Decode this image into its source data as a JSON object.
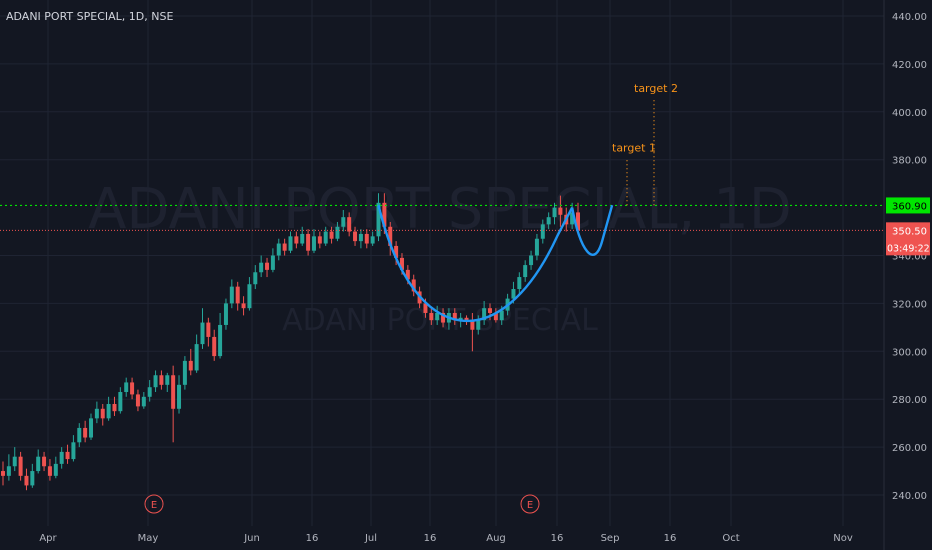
{
  "header": {
    "title": "ADANI PORT SPECIAL, 1D, NSE"
  },
  "watermark": {
    "line1": "ADANI PORT SPECIAL, 1D",
    "line2": "ADANI PORT SPECIAL"
  },
  "colors": {
    "background": "#131722",
    "grid": "#1f2433",
    "up": "#26a69a",
    "down": "#ef5350",
    "text": "#b2b5be",
    "resistance": "#00e600",
    "price_line": "#ef5350",
    "cup": "#2196f3",
    "annotation": "#f7931a"
  },
  "annotations": {
    "target1": "target 1",
    "target2": "target 2",
    "earnings_marker": "E"
  },
  "chart_data": {
    "type": "candlestick",
    "title": "ADANI PORT SPECIAL, 1D, NSE",
    "ylim": [
      228,
      448
    ],
    "y_ticks": [
      "240.00",
      "260.00",
      "280.00",
      "300.00",
      "320.00",
      "340.00",
      "380.00",
      "400.00",
      "420.00",
      "440.00"
    ],
    "x_ticks": [
      "Apr",
      "May",
      "Jun",
      "16",
      "Jul",
      "16",
      "Aug",
      "16",
      "Sep",
      "16",
      "Oct",
      "Nov"
    ],
    "grid": true,
    "price_labels": [
      {
        "label": "360.90",
        "value": 360.9,
        "role": "resistance"
      },
      {
        "label": "350.50",
        "value": 350.5,
        "role": "last-price"
      }
    ],
    "countdown": "03:49:22",
    "candles": [
      [
        250,
        248,
        254,
        244
      ],
      [
        248,
        252,
        257,
        246
      ],
      [
        252,
        256,
        260,
        250
      ],
      [
        256,
        248,
        258,
        246
      ],
      [
        248,
        244,
        251,
        242
      ],
      [
        244,
        250,
        253,
        243
      ],
      [
        250,
        256,
        259,
        249
      ],
      [
        256,
        252,
        258,
        250
      ],
      [
        252,
        248,
        255,
        246
      ],
      [
        248,
        253,
        256,
        247
      ],
      [
        253,
        258,
        260,
        251
      ],
      [
        258,
        255,
        261,
        253
      ],
      [
        255,
        262,
        265,
        254
      ],
      [
        262,
        268,
        270,
        260
      ],
      [
        268,
        264,
        271,
        262
      ],
      [
        264,
        272,
        274,
        263
      ],
      [
        272,
        276,
        279,
        270
      ],
      [
        276,
        272,
        278,
        269
      ],
      [
        272,
        278,
        281,
        271
      ],
      [
        278,
        275,
        281,
        273
      ],
      [
        275,
        283,
        285,
        274
      ],
      [
        283,
        287,
        289,
        281
      ],
      [
        287,
        282,
        289,
        280
      ],
      [
        282,
        277,
        284,
        275
      ],
      [
        277,
        281,
        283,
        276
      ],
      [
        281,
        285,
        288,
        279
      ],
      [
        285,
        290,
        292,
        283
      ],
      [
        290,
        286,
        292,
        284
      ],
      [
        286,
        290,
        291,
        283
      ],
      [
        290,
        276,
        294,
        262
      ],
      [
        276,
        286,
        290,
        274
      ],
      [
        286,
        296,
        298,
        284
      ],
      [
        296,
        292,
        301,
        290
      ],
      [
        292,
        303,
        307,
        291
      ],
      [
        303,
        312,
        318,
        301
      ],
      [
        312,
        306,
        314,
        302
      ],
      [
        306,
        298,
        309,
        296
      ],
      [
        298,
        311,
        316,
        297
      ],
      [
        311,
        320,
        322,
        309
      ],
      [
        320,
        327,
        330,
        318
      ],
      [
        327,
        320,
        329,
        317
      ],
      [
        320,
        318,
        323,
        315
      ],
      [
        318,
        328,
        331,
        317
      ],
      [
        328,
        333,
        336,
        326
      ],
      [
        333,
        337,
        340,
        331
      ],
      [
        337,
        334,
        339,
        331
      ],
      [
        334,
        340,
        343,
        333
      ],
      [
        340,
        345,
        347,
        338
      ],
      [
        345,
        342,
        347,
        340
      ],
      [
        342,
        348,
        350,
        341
      ],
      [
        348,
        345,
        350,
        343
      ],
      [
        345,
        349,
        352,
        344
      ],
      [
        349,
        342,
        351,
        340
      ],
      [
        342,
        348,
        351,
        341
      ],
      [
        348,
        345,
        350,
        343
      ],
      [
        345,
        350,
        352,
        344
      ],
      [
        350,
        347,
        352,
        345
      ],
      [
        347,
        352,
        354,
        346
      ],
      [
        352,
        356,
        359,
        350
      ],
      [
        356,
        350,
        358,
        348
      ],
      [
        350,
        346,
        352,
        344
      ],
      [
        346,
        349,
        351,
        343
      ],
      [
        349,
        345,
        351,
        343
      ],
      [
        345,
        348,
        350,
        344
      ],
      [
        348,
        362,
        366,
        346
      ],
      [
        362,
        352,
        366,
        349
      ],
      [
        352,
        344,
        354,
        340
      ],
      [
        344,
        339,
        346,
        336
      ],
      [
        339,
        334,
        341,
        332
      ],
      [
        334,
        330,
        336,
        328
      ],
      [
        330,
        325,
        332,
        323
      ],
      [
        325,
        320,
        327,
        318
      ],
      [
        320,
        316,
        322,
        314
      ],
      [
        316,
        313,
        318,
        311
      ],
      [
        313,
        316,
        319,
        311
      ],
      [
        316,
        312,
        318,
        310
      ],
      [
        312,
        316,
        318,
        309
      ],
      [
        316,
        313,
        318,
        311
      ],
      [
        313,
        314,
        316,
        310
      ],
      [
        314,
        313,
        315,
        311
      ],
      [
        313,
        309,
        316,
        300
      ],
      [
        309,
        313,
        315,
        307
      ],
      [
        313,
        318,
        321,
        311
      ],
      [
        318,
        316,
        320,
        313
      ],
      [
        316,
        313,
        318,
        312
      ],
      [
        313,
        317,
        319,
        311
      ],
      [
        317,
        322,
        324,
        315
      ],
      [
        322,
        326,
        329,
        320
      ],
      [
        326,
        331,
        333,
        324
      ],
      [
        331,
        336,
        338,
        329
      ],
      [
        336,
        340,
        342,
        334
      ],
      [
        340,
        347,
        349,
        338
      ],
      [
        347,
        353,
        355,
        345
      ],
      [
        353,
        356,
        358,
        351
      ],
      [
        356,
        360,
        362,
        353
      ],
      [
        360,
        357,
        365,
        352
      ],
      [
        357,
        353,
        360,
        350
      ],
      [
        353,
        358,
        362,
        351
      ],
      [
        358,
        350.5,
        362,
        349
      ]
    ],
    "patterns": [
      {
        "name": "cup",
        "from_index": 64,
        "to_index": 97
      },
      {
        "name": "projection",
        "note": "handle and breakout"
      }
    ],
    "targets": [
      {
        "label": "target 1",
        "level": 380
      },
      {
        "label": "target 2",
        "level": 405
      }
    ]
  }
}
